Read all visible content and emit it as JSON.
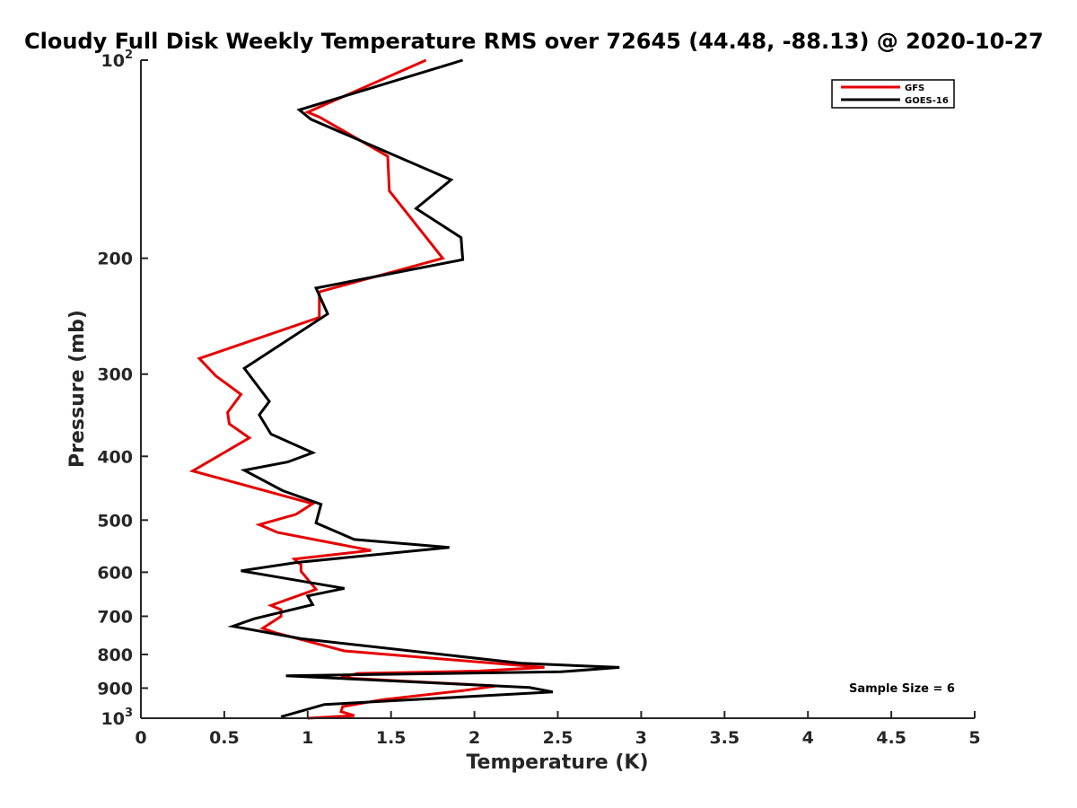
{
  "chart_data": {
    "type": "line",
    "title": "Cloudy Full Disk Weekly Temperature RMS over 72645 (44.48, -88.13) @ 2020-10-27",
    "xlabel": "Temperature (K)",
    "ylabel": "Pressure (mb)",
    "xlim": [
      0,
      5
    ],
    "ylim": [
      100,
      1000
    ],
    "y_scale": "log",
    "y_reversed": true,
    "x_ticks": [
      {
        "value": 0,
        "label": "0"
      },
      {
        "value": 0.5,
        "label": "0.5"
      },
      {
        "value": 1,
        "label": "1"
      },
      {
        "value": 1.5,
        "label": "1.5"
      },
      {
        "value": 2,
        "label": "2"
      },
      {
        "value": 2.5,
        "label": "2.5"
      },
      {
        "value": 3,
        "label": "3"
      },
      {
        "value": 3.5,
        "label": "3.5"
      },
      {
        "value": 4,
        "label": "4"
      },
      {
        "value": 4.5,
        "label": "4.5"
      },
      {
        "value": 5,
        "label": "5"
      }
    ],
    "y_ticks": [
      {
        "value": 100,
        "label": "10",
        "sup": "2"
      },
      {
        "value": 200,
        "label": "200",
        "sup": ""
      },
      {
        "value": 300,
        "label": "300",
        "sup": ""
      },
      {
        "value": 400,
        "label": "400",
        "sup": ""
      },
      {
        "value": 500,
        "label": "500",
        "sup": ""
      },
      {
        "value": 600,
        "label": "600",
        "sup": ""
      },
      {
        "value": 700,
        "label": "700",
        "sup": ""
      },
      {
        "value": 800,
        "label": "800",
        "sup": ""
      },
      {
        "value": 900,
        "label": "900",
        "sup": ""
      },
      {
        "value": 1000,
        "label": "10",
        "sup": "3"
      }
    ],
    "grid": false,
    "legend_position": "top-right",
    "annotation": "Sample Size = 6",
    "series": [
      {
        "name": "GFS",
        "color": "#e60000",
        "points": [
          [
            1.71,
            100
          ],
          [
            1.0,
            120
          ],
          [
            1.07,
            122
          ],
          [
            1.48,
            140
          ],
          [
            1.49,
            158
          ],
          [
            1.81,
            200
          ],
          [
            1.07,
            225
          ],
          [
            1.07,
            246
          ],
          [
            0.35,
            284
          ],
          [
            0.45,
            302
          ],
          [
            0.6,
            322
          ],
          [
            0.52,
            343
          ],
          [
            0.53,
            357
          ],
          [
            0.65,
            375
          ],
          [
            0.31,
            421
          ],
          [
            1.03,
            472
          ],
          [
            0.93,
            490
          ],
          [
            0.71,
            508
          ],
          [
            0.82,
            522
          ],
          [
            1.38,
            556
          ],
          [
            0.92,
            573
          ],
          [
            0.96,
            585
          ],
          [
            0.96,
            598
          ],
          [
            1.05,
            637
          ],
          [
            0.78,
            674
          ],
          [
            0.84,
            684
          ],
          [
            0.84,
            700
          ],
          [
            0.73,
            730
          ],
          [
            0.81,
            742
          ],
          [
            1.22,
            790
          ],
          [
            2.42,
            837
          ],
          [
            2.02,
            848
          ],
          [
            1.3,
            855
          ],
          [
            1.2,
            868
          ],
          [
            2.13,
            893
          ],
          [
            1.93,
            908
          ],
          [
            1.45,
            937
          ],
          [
            1.21,
            960
          ],
          [
            1.2,
            977
          ],
          [
            1.28,
            991
          ],
          [
            1.0,
            1000
          ]
        ]
      },
      {
        "name": "GOES-16",
        "color": "#000000",
        "points": [
          [
            1.93,
            100
          ],
          [
            0.95,
            119
          ],
          [
            1.02,
            123
          ],
          [
            1.86,
            152
          ],
          [
            1.65,
            168
          ],
          [
            1.92,
            186
          ],
          [
            1.93,
            201
          ],
          [
            1.05,
            222
          ],
          [
            1.12,
            243
          ],
          [
            0.62,
            294
          ],
          [
            0.77,
            330
          ],
          [
            0.71,
            346
          ],
          [
            0.78,
            370
          ],
          [
            1.03,
            395
          ],
          [
            0.88,
            408
          ],
          [
            0.62,
            420
          ],
          [
            0.85,
            451
          ],
          [
            1.08,
            473
          ],
          [
            1.05,
            505
          ],
          [
            1.28,
            535
          ],
          [
            1.85,
            550
          ],
          [
            0.93,
            580
          ],
          [
            0.6,
            597
          ],
          [
            1.22,
            635
          ],
          [
            1.0,
            652
          ],
          [
            1.03,
            672
          ],
          [
            0.68,
            706
          ],
          [
            0.55,
            725
          ],
          [
            0.96,
            757
          ],
          [
            2.28,
            825
          ],
          [
            2.87,
            837
          ],
          [
            2.52,
            850
          ],
          [
            0.87,
            862
          ],
          [
            2.33,
            898
          ],
          [
            2.47,
            912
          ],
          [
            1.1,
            953
          ],
          [
            0.84,
            995
          ]
        ]
      }
    ]
  }
}
